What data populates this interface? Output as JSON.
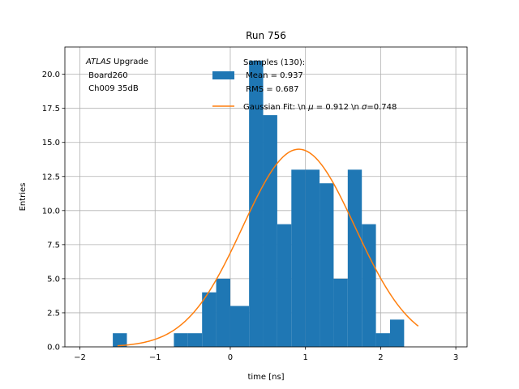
{
  "chart_data": {
    "type": "histogram",
    "title": "Run 756",
    "xlabel": "time [ns]",
    "ylabel": "Entries",
    "xlim": [
      -2.2,
      3.15
    ],
    "ylim": [
      0,
      22
    ],
    "grid": true,
    "bin_width": 0.1875,
    "bins": [
      {
        "x0": -1.5625,
        "count": 1
      },
      {
        "x0": -1.375,
        "count": 0
      },
      {
        "x0": -1.1875,
        "count": 0
      },
      {
        "x0": -1.0,
        "count": 0
      },
      {
        "x0": -0.8125,
        "count": 0
      },
      {
        "x0": -0.75,
        "count": 1
      },
      {
        "x0": -0.5625,
        "count": 1
      },
      {
        "x0": -0.375,
        "count": 4
      },
      {
        "x0": -0.1875,
        "count": 5
      },
      {
        "x0": 0.0,
        "count": 3
      },
      {
        "x0": 0.25,
        "count": 21
      },
      {
        "x0": 0.4375,
        "count": 17
      },
      {
        "x0": 0.625,
        "count": 9
      },
      {
        "x0": 0.8125,
        "count": 13
      },
      {
        "x0": 1.0,
        "count": 13
      },
      {
        "x0": 1.1875,
        "count": 12
      },
      {
        "x0": 1.375,
        "count": 5
      },
      {
        "x0": 1.5625,
        "count": 13
      },
      {
        "x0": 1.75,
        "count": 9
      },
      {
        "x0": 1.9375,
        "count": 1
      },
      {
        "x0": 2.125,
        "count": 2
      }
    ],
    "xticks": [
      -2,
      -1,
      0,
      1,
      2,
      3
    ],
    "yticks": [
      0.0,
      2.5,
      5.0,
      7.5,
      10.0,
      12.5,
      15.0,
      17.5,
      20.0
    ],
    "ytick_labels": [
      "0.0",
      "2.5",
      "5.0",
      "7.5",
      "10.0",
      "12.5",
      "15.0",
      "17.5",
      "20.0"
    ],
    "gaussian_fit": {
      "amplitude": 14.5,
      "mu": 0.912,
      "sigma": 0.748,
      "x_range": [
        -1.5,
        2.5
      ]
    },
    "annotation": {
      "line1_italic": "ATLAS",
      "line1_rest": " Upgrade",
      "line2": " Board260",
      "line3": " Ch009 35dB"
    },
    "legend": {
      "placement": "top-center",
      "samples_line1": "Samples (130):",
      "samples_line2": " Mean = 0.937",
      "samples_line3": " RMS = 0.687",
      "fit_label_prefix": "Gaussian Fit: \\n ",
      "fit_mu_symbol": "μ",
      "fit_mu_value": " = 0.912 \\n ",
      "fit_sigma_symbol": "σ",
      "fit_sigma_value": "=0.748"
    },
    "colors": {
      "bars": "#1f77b4",
      "fit": "#ff7f0e",
      "grid": "#b0b0b0",
      "axes": "#000000"
    }
  }
}
